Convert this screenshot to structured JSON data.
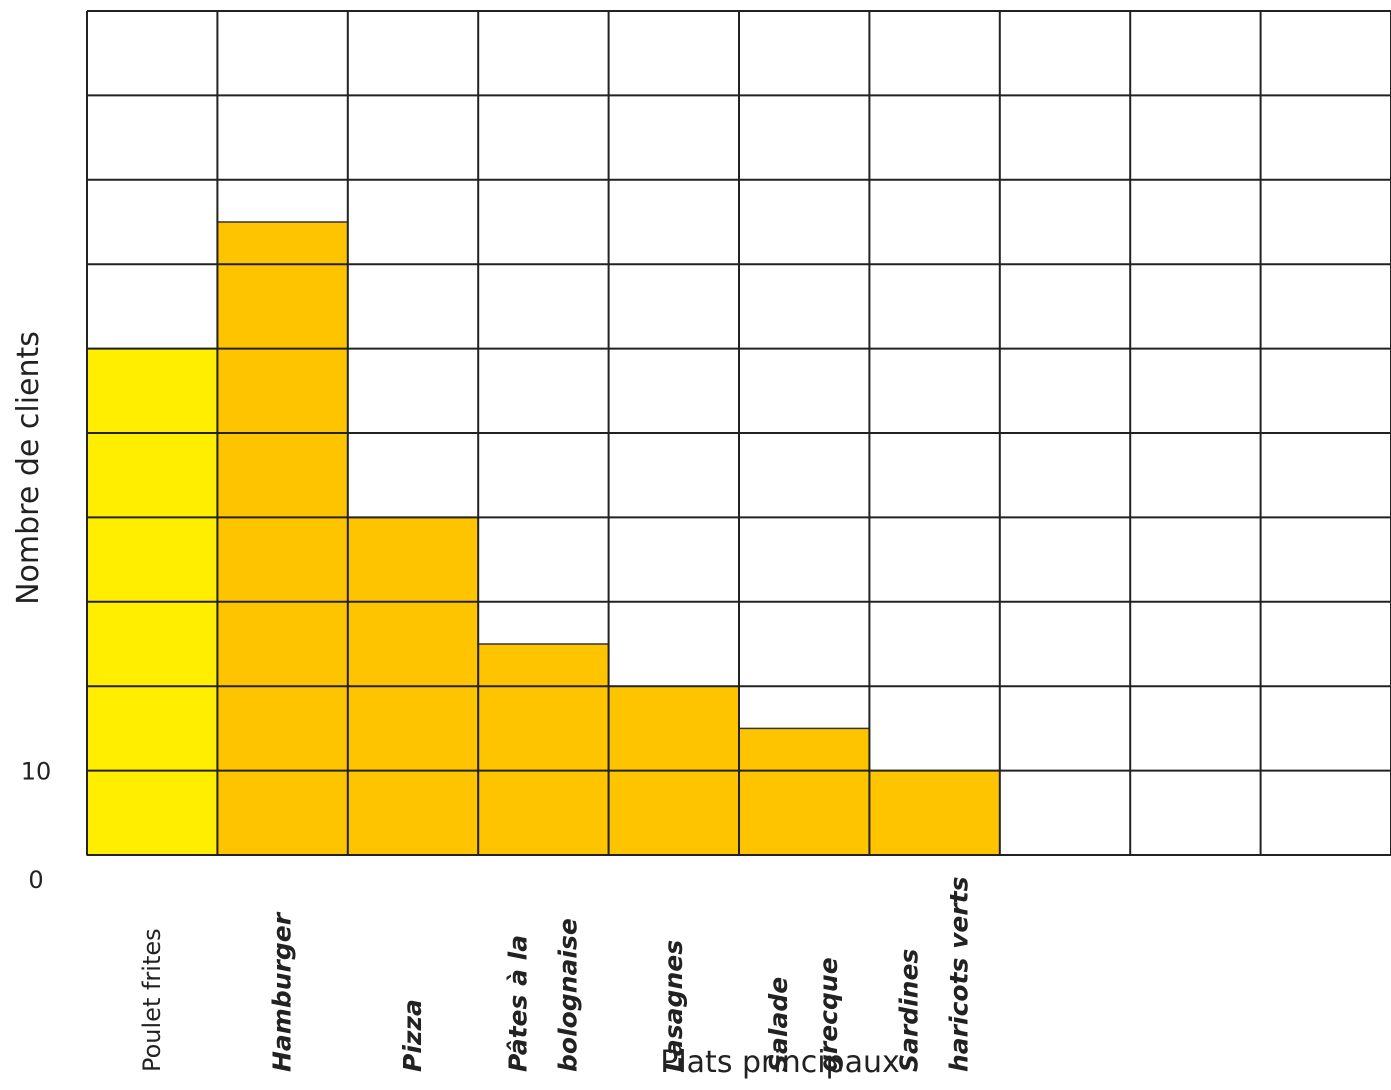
{
  "chart_data": {
    "type": "bar",
    "title": "",
    "xlabel": "Plats principaux",
    "ylabel": "Nombre de clients",
    "categories": [
      [
        "Poulet frites"
      ],
      [
        "Hamburger"
      ],
      [
        "Pizza"
      ],
      [
        "Pâtes à la",
        "bolognaise"
      ],
      [
        "Lasagnes"
      ],
      [
        "Salade",
        "grecque"
      ],
      [
        "Sardines",
        "haricots verts"
      ]
    ],
    "values": [
      60,
      75,
      40,
      25,
      20,
      15,
      10
    ],
    "y_tick_labels": [
      {
        "value": 0,
        "label": "0"
      },
      {
        "value": 10,
        "label": "10"
      }
    ],
    "grid_step": 10,
    "ylim": [
      0,
      100
    ],
    "grid": true,
    "grid_columns": 10,
    "colors": {
      "first_bar": "#ffee00",
      "bar": "#ffc400",
      "grid": "#222222"
    }
  }
}
